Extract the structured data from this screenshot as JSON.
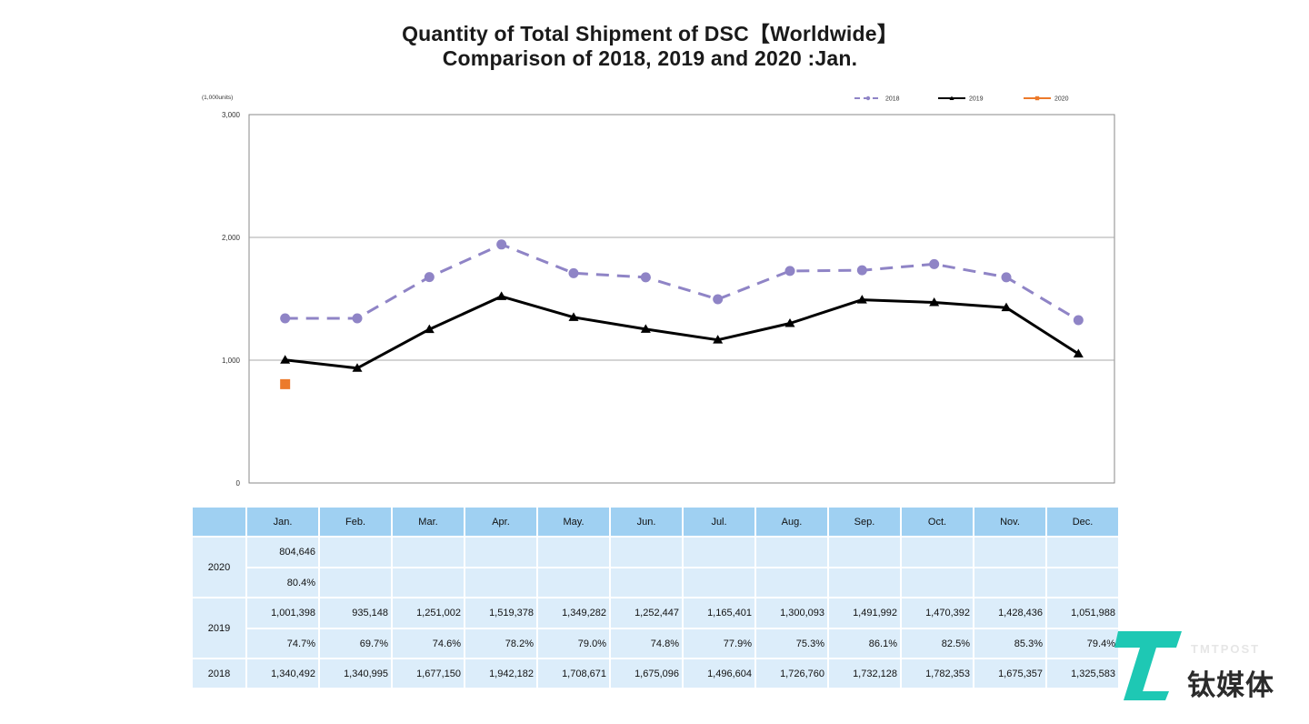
{
  "title_line1": "Quantity of Total Shipment of DSC【Worldwide】",
  "title_line2": "Comparison of 2018, 2019 and 2020 :Jan.",
  "chart_data": {
    "type": "line",
    "unit_label": "(1,000units)",
    "ylim": [
      0,
      3000
    ],
    "yticks": [
      "3,000",
      "2,000",
      "1,000",
      "0"
    ],
    "ytick_values": [
      3000,
      2000,
      1000,
      0
    ],
    "grid": true,
    "legend_position": "top-right",
    "categories": [
      "Jan.",
      "Feb.",
      "Mar.",
      "Apr.",
      "May.",
      "Jun.",
      "Jul.",
      "Aug.",
      "Sep.",
      "Oct.",
      "Nov.",
      "Dec."
    ],
    "series": [
      {
        "name": "2018",
        "color": "#8f84c6",
        "style": "dashed",
        "marker": "circle",
        "values": [
          1340.492,
          1340.995,
          1677.15,
          1942.182,
          1708.671,
          1675.096,
          1496.604,
          1726.76,
          1732.128,
          1782.353,
          1675.357,
          1325.583
        ]
      },
      {
        "name": "2019",
        "color": "#000000",
        "style": "solid",
        "marker": "triangle",
        "values": [
          1001.398,
          935.148,
          1251.002,
          1519.378,
          1349.282,
          1252.447,
          1165.401,
          1300.093,
          1491.992,
          1470.392,
          1428.436,
          1051.988
        ]
      },
      {
        "name": "2020",
        "color": "#ec7a2b",
        "style": "solid",
        "marker": "square",
        "values": [
          804.646,
          null,
          null,
          null,
          null,
          null,
          null,
          null,
          null,
          null,
          null,
          null
        ]
      }
    ]
  },
  "table": {
    "months": [
      "Jan.",
      "Feb.",
      "Mar.",
      "Apr.",
      "May.",
      "Jun.",
      "Jul.",
      "Aug.",
      "Sep.",
      "Oct.",
      "Nov.",
      "Dec."
    ],
    "year_2020": {
      "label": "2020",
      "values": [
        "804,646",
        "",
        "",
        "",
        "",
        "",
        "",
        "",
        "",
        "",
        "",
        ""
      ],
      "ratios": [
        "80.4%",
        "",
        "",
        "",
        "",
        "",
        "",
        "",
        "",
        "",
        "",
        ""
      ]
    },
    "year_2019": {
      "label": "2019",
      "values": [
        "1,001,398",
        "935,148",
        "1,251,002",
        "1,519,378",
        "1,349,282",
        "1,252,447",
        "1,165,401",
        "1,300,093",
        "1,491,992",
        "1,470,392",
        "1,428,436",
        "1,051,988"
      ],
      "ratios": [
        "74.7%",
        "69.7%",
        "74.6%",
        "78.2%",
        "79.0%",
        "74.8%",
        "77.9%",
        "75.3%",
        "86.1%",
        "82.5%",
        "85.3%",
        "79.4%"
      ]
    },
    "year_2018": {
      "label": "2018",
      "values": [
        "1,340,492",
        "1,340,995",
        "1,677,150",
        "1,942,182",
        "1,708,671",
        "1,675,096",
        "1,496,604",
        "1,726,760",
        "1,732,128",
        "1,782,353",
        "1,675,357",
        "1,325,583"
      ]
    }
  },
  "watermark": {
    "brand_en": "TMTPOST",
    "brand_cn": "钛媒体",
    "colors": {
      "teal": "#1ec8b4",
      "dark": "#2b2b2b"
    }
  }
}
